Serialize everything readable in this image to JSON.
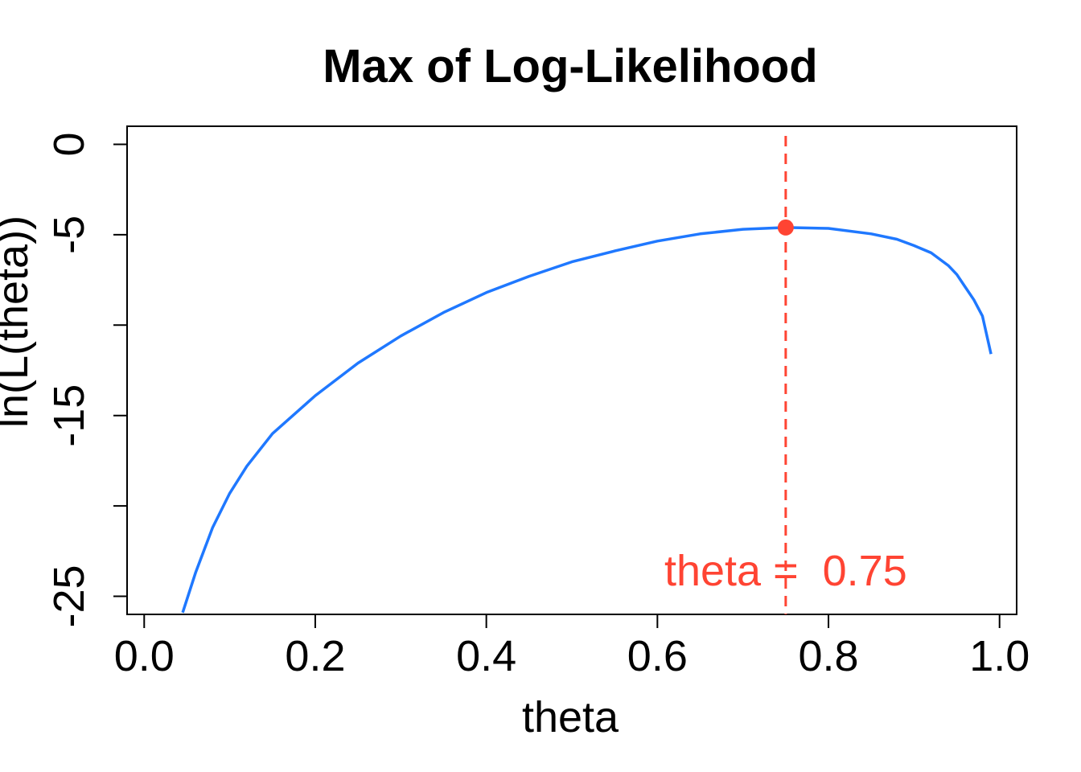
{
  "chart_data": {
    "type": "line",
    "title": "Max of Log-Likelihood",
    "xlabel": "theta",
    "ylabel": "ln(L(theta))",
    "xlim": [
      -0.02,
      1.02
    ],
    "ylim": [
      -26,
      1
    ],
    "x_ticks": [
      0.0,
      0.2,
      0.4,
      0.6,
      0.8,
      1.0
    ],
    "x_tick_labels": [
      "0.0",
      "0.2",
      "0.4",
      "0.6",
      "0.8",
      "1.0"
    ],
    "y_ticks": [
      0,
      -5,
      -10,
      -15,
      -20,
      -25
    ],
    "y_tick_labels": [
      "0",
      "-5",
      "",
      "-15",
      "",
      "-25"
    ],
    "grid": false,
    "series": [
      {
        "color": "#1f78ff",
        "style": "solid",
        "x": [
          0.045,
          0.06,
          0.08,
          0.1,
          0.12,
          0.15,
          0.2,
          0.25,
          0.3,
          0.35,
          0.4,
          0.45,
          0.5,
          0.55,
          0.6,
          0.65,
          0.7,
          0.75,
          0.8,
          0.85,
          0.88,
          0.9,
          0.92,
          0.94,
          0.95,
          0.96,
          0.97,
          0.98,
          0.99
        ],
        "y": [
          -25.9,
          -23.7,
          -21.2,
          -19.3,
          -17.8,
          -16.0,
          -13.9,
          -12.1,
          -10.6,
          -9.3,
          -8.2,
          -7.3,
          -6.5,
          -5.9,
          -5.35,
          -4.95,
          -4.7,
          -4.6,
          -4.65,
          -4.95,
          -5.25,
          -5.6,
          -6.0,
          -6.7,
          -7.2,
          -7.9,
          -8.6,
          -9.5,
          -11.6
        ]
      }
    ],
    "max_point": {
      "x": 0.75,
      "y": -4.6,
      "color": "#ff4433"
    },
    "vline": {
      "x": 0.75,
      "color": "#ff4433",
      "style": "dashed"
    },
    "annotation": {
      "text": "theta =  0.75",
      "x": 0.75,
      "y": -24.4,
      "color": "#ff4433"
    }
  }
}
